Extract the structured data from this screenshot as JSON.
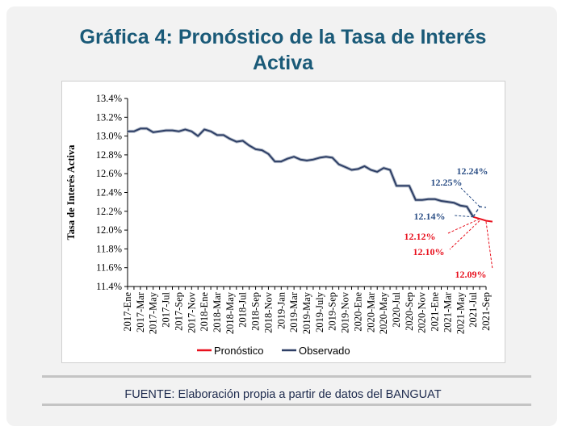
{
  "title_line1": "Gráfica 4: Pronóstico de la Tasa de Interés",
  "title_line2": "Activa",
  "source": "FUENTE: Elaboración propia a partir de datos del BANGUAT",
  "colors": {
    "observed": "#2e3f66",
    "forecast": "#e8101d",
    "upper": "#2c4f86",
    "title": "#1a5a78"
  },
  "chart_data": {
    "type": "line",
    "title": "Gráfica 4: Pronóstico de la Tasa de Interés Activa",
    "xlabel": "",
    "ylabel": "Tasa de Interés Activa",
    "ylim": [
      11.4,
      13.4
    ],
    "yticks": [
      "13.4%",
      "13.2%",
      "13.0%",
      "12.8%",
      "12.6%",
      "12.4%",
      "12.2%",
      "12.0%",
      "11.8%",
      "11.6%",
      "11.4%"
    ],
    "ytick_values": [
      13.4,
      13.2,
      13.0,
      12.8,
      12.6,
      12.4,
      12.2,
      12.0,
      11.8,
      11.6,
      11.4
    ],
    "x_labels": [
      "2017-Ene",
      "2017-Mar",
      "2017-May",
      "2017-Jul",
      "2017-Sep",
      "2017-Nov",
      "2018-Ene",
      "2018-Mar",
      "2018-May",
      "2018-Jul",
      "2018-Sep",
      "2018-Nov",
      "2019-Jan",
      "2019-Mar",
      "2019-May",
      "2019-July",
      "2019-Sep",
      "2019-Nov",
      "2020-Ene",
      "2020-Mar",
      "2020-May",
      "2020-Jul",
      "2020-Sep",
      "2020-Nov",
      "2021-Ene",
      "2021-Mar",
      "2021-May",
      "2021-Jul",
      "2021-Sep"
    ],
    "x_label_index": [
      0,
      2,
      4,
      6,
      8,
      10,
      12,
      14,
      16,
      18,
      20,
      22,
      24,
      26,
      28,
      30,
      32,
      34,
      36,
      38,
      40,
      42,
      44,
      46,
      48,
      50,
      52,
      54,
      56
    ],
    "legend": [
      "Pronóstico",
      "Observado"
    ],
    "legend_position": "bottom",
    "series": [
      {
        "name": "Observado",
        "start_index": 0,
        "values": [
          13.05,
          13.05,
          13.08,
          13.08,
          13.04,
          13.05,
          13.06,
          13.06,
          13.05,
          13.07,
          13.05,
          13.0,
          13.07,
          13.05,
          13.01,
          13.01,
          12.97,
          12.94,
          12.95,
          12.9,
          12.86,
          12.85,
          12.81,
          12.73,
          12.73,
          12.76,
          12.78,
          12.75,
          12.74,
          12.75,
          12.77,
          12.78,
          12.77,
          12.7,
          12.67,
          12.64,
          12.65,
          12.68,
          12.64,
          12.62,
          12.66,
          12.64,
          12.47,
          12.47,
          12.47,
          12.32,
          12.32,
          12.33,
          12.33,
          12.31,
          12.3,
          12.29,
          12.26,
          12.25,
          12.14
        ]
      },
      {
        "name": "Pronóstico",
        "start_index": 54,
        "values": [
          12.14,
          12.12,
          12.1,
          12.09
        ]
      }
    ],
    "forecast_upper": {
      "start_index": 54,
      "values": [
        12.14,
        12.25,
        12.24
      ]
    },
    "annotations": [
      {
        "text": "12.24%",
        "color": "upper"
      },
      {
        "text": "12.25%",
        "color": "upper"
      },
      {
        "text": "12.14%",
        "color": "upper"
      },
      {
        "text": "12.12%",
        "color": "forecast"
      },
      {
        "text": "12.10%",
        "color": "forecast"
      },
      {
        "text": "12.09%",
        "color": "forecast"
      }
    ]
  }
}
